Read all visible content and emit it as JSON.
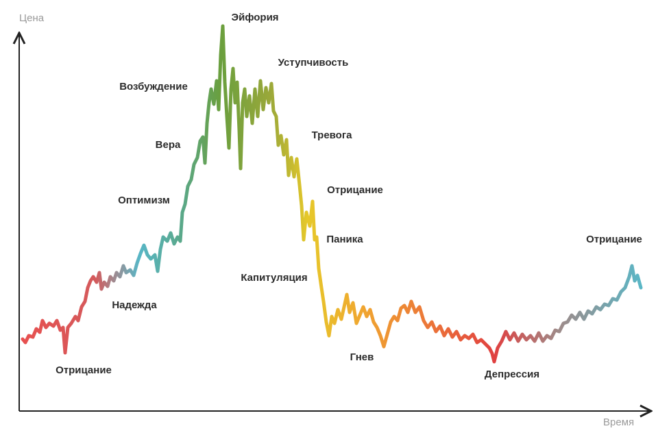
{
  "axes": {
    "y_label": "Цена",
    "x_label": "Время"
  },
  "stages": [
    "Отрицание",
    "Надежда",
    "Оптимизм",
    "Вера",
    "Возбуждение",
    "Эйфория",
    "Уступчивость",
    "Тревога",
    "Отрицание",
    "Паника",
    "Капитуляция",
    "Гнев",
    "Депрессия",
    "Отрицание"
  ]
}
